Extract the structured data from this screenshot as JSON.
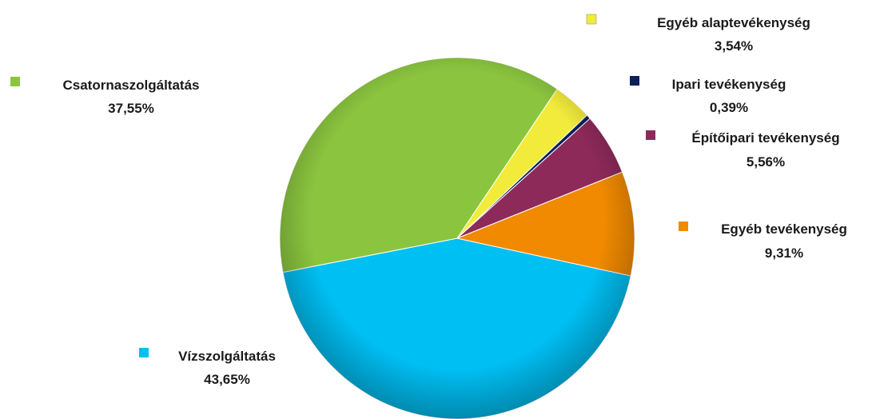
{
  "chart_data": {
    "type": "pie",
    "title": "",
    "slices": [
      {
        "name": "Vízszolgáltatás",
        "value": 43.65,
        "label": "43,65%",
        "color": "#00BFF3"
      },
      {
        "name": "Csatornaszolgáltatás",
        "value": 37.55,
        "label": "37,55%",
        "color": "#8BC53F"
      },
      {
        "name": "Egyéb alaptevékenység",
        "value": 3.54,
        "label": "3,54%",
        "color": "#F2EB3C"
      },
      {
        "name": "Ipari tevékenység",
        "value": 0.39,
        "label": "0,39%",
        "color": "#0B1F5C"
      },
      {
        "name": "Építőipari tevékenység",
        "value": 5.56,
        "label": "5,56%",
        "color": "#8E2A5A"
      },
      {
        "name": "Egyéb tevékenység",
        "value": 9.31,
        "label": "9,31%",
        "color": "#F18A00"
      }
    ],
    "legend": "labels-around-pie"
  }
}
